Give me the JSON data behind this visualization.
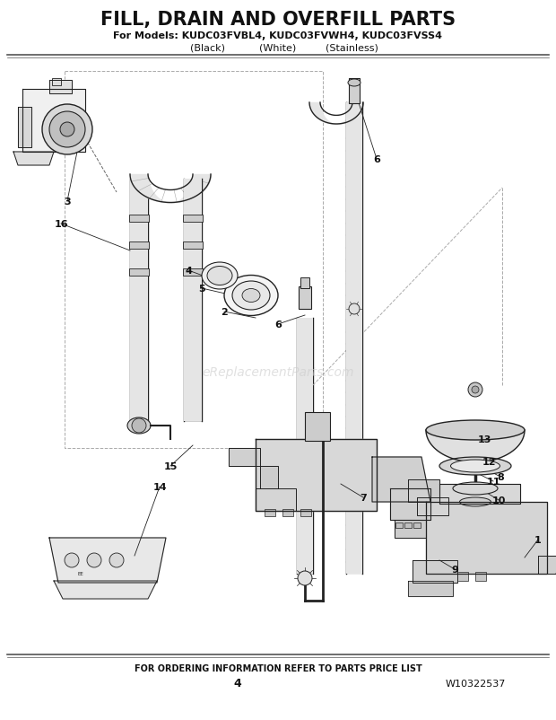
{
  "title": "FILL, DRAIN AND OVERFILL PARTS",
  "subtitle": "For Models: KUDC03FVBL4, KUDC03FVWH4, KUDC03FVSS4",
  "subtitle2_parts": [
    "(Black)",
    "(White)",
    "(Stainless)"
  ],
  "footer": "FOR ORDERING INFORMATION REFER TO PARTS PRICE LIST",
  "page_num": "4",
  "doc_num": "W10322537",
  "bg_color": "#ffffff",
  "title_color": "#1a1a1a",
  "watermark": "eReplacementParts.com",
  "figsize": [
    6.2,
    8.03
  ],
  "dpi": 100,
  "lc": "#444444",
  "fc": "#e8e8e8",
  "dark": "#222222"
}
